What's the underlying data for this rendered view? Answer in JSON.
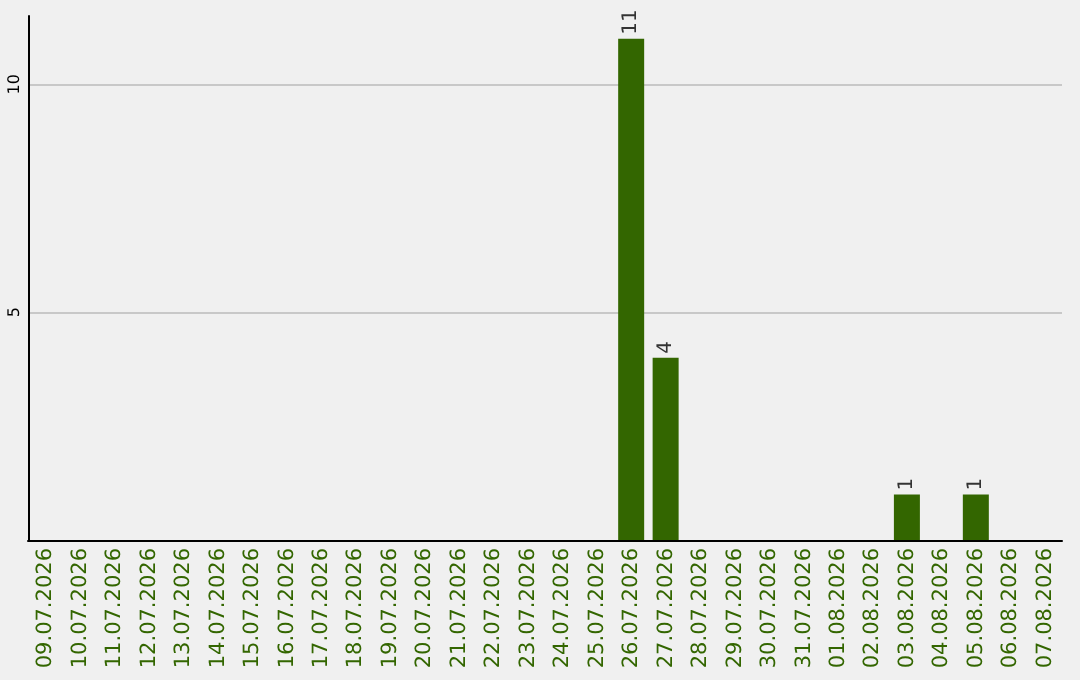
{
  "chart_data": {
    "type": "bar",
    "categories": [
      "09.07.2026",
      "10.07.2026",
      "11.07.2026",
      "12.07.2026",
      "13.07.2026",
      "14.07.2026",
      "15.07.2026",
      "16.07.2026",
      "17.07.2026",
      "18.07.2026",
      "19.07.2026",
      "20.07.2026",
      "21.07.2026",
      "22.07.2026",
      "23.07.2026",
      "24.07.2026",
      "25.07.2026",
      "26.07.2026",
      "27.07.2026",
      "28.07.2026",
      "29.07.2026",
      "30.07.2026",
      "31.07.2026",
      "01.08.2026",
      "02.08.2026",
      "03.08.2026",
      "04.08.2026",
      "05.08.2026",
      "06.08.2026",
      "07.08.2026"
    ],
    "values": [
      0,
      0,
      0,
      0,
      0,
      0,
      0,
      0,
      0,
      0,
      0,
      0,
      0,
      0,
      0,
      0,
      0,
      11,
      4,
      0,
      0,
      0,
      0,
      0,
      0,
      1,
      0,
      1,
      0,
      0
    ],
    "value_labels": [
      null,
      null,
      null,
      null,
      null,
      null,
      null,
      null,
      null,
      null,
      null,
      null,
      null,
      null,
      null,
      null,
      null,
      "11",
      "4",
      null,
      null,
      null,
      null,
      null,
      null,
      "1",
      null,
      "1",
      null,
      null
    ],
    "color": "#336600",
    "ylim": [
      0,
      11.5
    ],
    "yticks": [
      5,
      10
    ],
    "grid": "y"
  }
}
